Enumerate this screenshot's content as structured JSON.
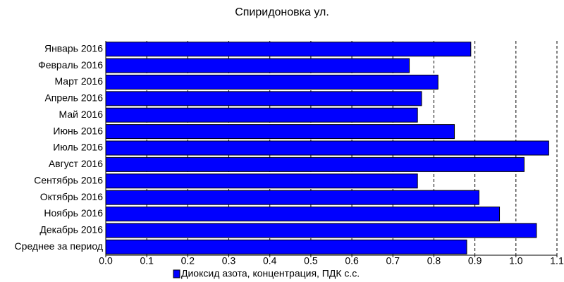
{
  "chart_data": {
    "type": "barh",
    "title": "Спиридоновка ул.",
    "categories": [
      "Январь 2016",
      "Февраль 2016",
      "Март 2016",
      "Апрель 2016",
      "Май 2016",
      "Июнь 2016",
      "Июль 2016",
      "Август 2016",
      "Сентябрь 2016",
      "Октябрь 2016",
      "Ноябрь 2016",
      "Декабрь 2016",
      "Среднее за период"
    ],
    "series": [
      {
        "name": "Диоксид азота, концентрация, ПДК с.с.",
        "color": "#0000ff",
        "values": [
          0.89,
          0.74,
          0.81,
          0.77,
          0.76,
          0.85,
          1.08,
          1.02,
          0.76,
          0.91,
          0.96,
          1.05,
          0.88
        ]
      }
    ],
    "xlim": [
      0,
      1.1
    ],
    "xticks": [
      {
        "value": 0,
        "label": "0.0"
      },
      0.1,
      0.2,
      0.3,
      0.4,
      0.5,
      0.6,
      0.7,
      0.8,
      0.9,
      {
        "value": 1,
        "label": "1.0"
      },
      1.1
    ],
    "grid": true,
    "legend": "bottom"
  }
}
